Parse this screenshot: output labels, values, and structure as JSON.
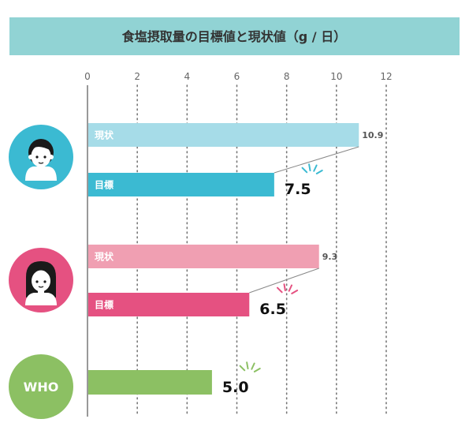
{
  "chart_data": {
    "type": "bar",
    "title": "食塩摂取量の目標値と現状値（g / 日）",
    "x_ticks": [
      "0",
      "2",
      "4",
      "6",
      "8",
      "10",
      "12"
    ],
    "xlim": [
      0,
      12
    ],
    "grid": true,
    "groups": [
      {
        "icon": "man-avatar-icon",
        "circle_color": "#3bbad2",
        "bars": [
          {
            "label": "現状",
            "value": 10.9,
            "value_label": "10.9",
            "color": "#a6dce8",
            "emphasis": false
          },
          {
            "label": "目標",
            "value": 7.5,
            "value_label": "7.5",
            "color": "#3bbad2",
            "emphasis": true
          }
        ],
        "accent": "#3bbad2"
      },
      {
        "icon": "woman-avatar-icon",
        "circle_color": "#e55181",
        "bars": [
          {
            "label": "現状",
            "value": 9.3,
            "value_label": "9.3",
            "color": "#f09fb2",
            "emphasis": false
          },
          {
            "label": "目標",
            "value": 6.5,
            "value_label": "6.5",
            "color": "#e55181",
            "emphasis": true
          }
        ],
        "accent": "#e55181"
      },
      {
        "circle_text": "WHO",
        "circle_color": "#8cc063",
        "bars": [
          {
            "label": "",
            "value": 5.0,
            "value_label": "5.0",
            "color": "#8cc063",
            "emphasis": true
          }
        ],
        "accent": "#8cc063"
      }
    ]
  },
  "colors": {
    "title_band": "#91d3d4",
    "axis": "#555555",
    "grid": "#777777"
  }
}
